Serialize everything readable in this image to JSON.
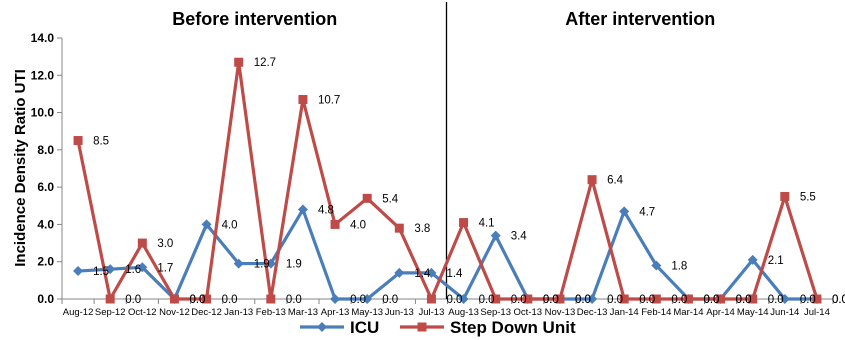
{
  "chart_data": {
    "type": "line",
    "ylabel": "Incidence Density Ratio UTI",
    "xlabel": "",
    "ylim": [
      0,
      14
    ],
    "yticks": [
      "0.0",
      "2.0",
      "4.0",
      "6.0",
      "8.0",
      "10.0",
      "12.0",
      "14.0"
    ],
    "grid": false,
    "legend_position": "bottom",
    "categories": [
      "Aug-12",
      "Sep-12",
      "Oct-12",
      "Nov-12",
      "Dec-12",
      "Jan-13",
      "Feb-13",
      "Mar-13",
      "Apr-13",
      "May-13",
      "Jun-13",
      "Jul-13",
      "Aug-13",
      "Sep-13",
      "Oct-13",
      "Nov-13",
      "Dec-13",
      "Jan-14",
      "Feb-14",
      "Mar-14",
      "Apr-14",
      "May-14",
      "Jun-14",
      "Jul-14"
    ],
    "sections": [
      {
        "label": "Before intervention",
        "from": 0,
        "to": 11
      },
      {
        "label": "After intervention",
        "from": 12,
        "to": 23
      }
    ],
    "divider_after_index": 11,
    "series": [
      {
        "name": "ICU",
        "color": "#4a7ebb",
        "marker": "diamond",
        "values": [
          1.5,
          1.6,
          1.7,
          0.0,
          4.0,
          1.9,
          1.9,
          4.8,
          0.0,
          0.0,
          1.4,
          1.4,
          0.0,
          3.4,
          0.0,
          0.0,
          0.0,
          4.7,
          1.8,
          0.0,
          0.0,
          2.1,
          0.0,
          0.0
        ],
        "labels": [
          "1.5",
          "1.6",
          "1.7",
          "0.0",
          "4.0",
          "1.9",
          "1.9",
          "4.8",
          "0.0",
          "0.0",
          "1.4",
          "1.4",
          "0.0",
          "3.4",
          "0.0",
          "0.0",
          "0.0",
          "4.7",
          "1.8",
          "0.0",
          "0.0",
          "2.1",
          "0.0",
          "0.0"
        ]
      },
      {
        "name": "Step Down Unit",
        "color": "#be4b48",
        "marker": "square",
        "values": [
          8.5,
          0.0,
          3.0,
          0.0,
          0.0,
          12.7,
          0.0,
          10.7,
          4.0,
          5.4,
          3.8,
          0.0,
          4.1,
          0.0,
          0.0,
          0.0,
          6.4,
          0.0,
          0.0,
          0.0,
          0.0,
          0.0,
          5.5,
          0.0
        ],
        "labels": [
          "8.5",
          "0.0",
          "3.0",
          "0.0",
          "0.0",
          "12.7",
          "0.0",
          "10.7",
          "4.0",
          "5.4",
          "3.8",
          "0.0",
          "4.1",
          "0.0",
          "0.0",
          "0.0",
          "6.4",
          "0.0",
          "0.0",
          "0.0",
          "0.0",
          "0.0",
          "5.5",
          "0.0"
        ]
      }
    ]
  }
}
